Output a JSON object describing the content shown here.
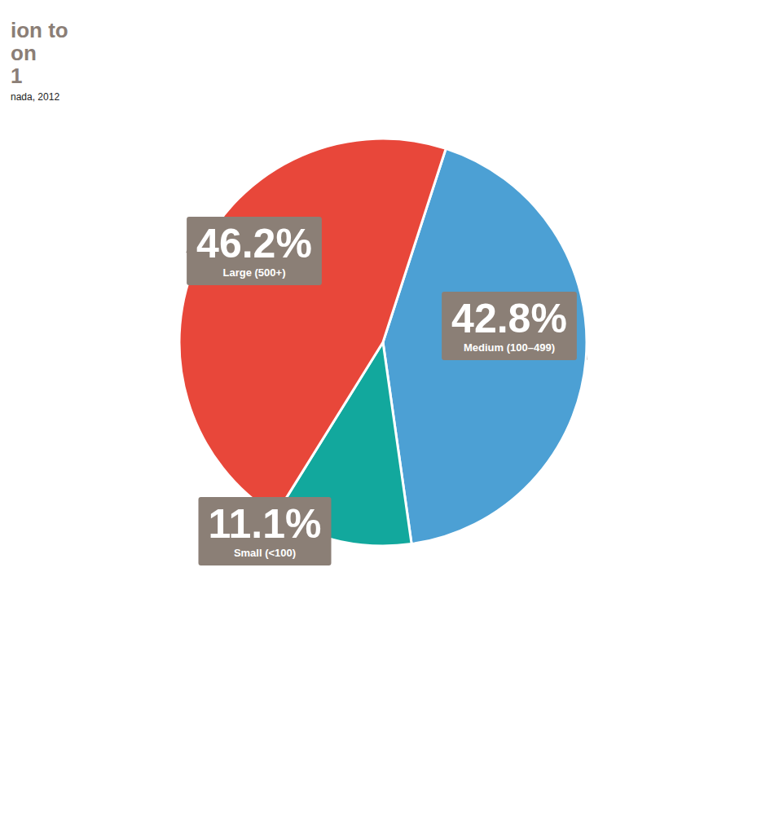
{
  "chart_data": {
    "type": "pie",
    "title": "ion to\non\n1",
    "subtitle": "nada, 2012",
    "categories": [
      "Medium (100–499)",
      "Small (<100)",
      "Large (500+)"
    ],
    "values": [
      42.8,
      11.1,
      46.2
    ],
    "value_labels": [
      "42.8%",
      "11.1%",
      "46.2%"
    ],
    "colors": [
      "#4ca0d4",
      "#12a89d",
      "#e8473a"
    ],
    "data_labels": true
  }
}
